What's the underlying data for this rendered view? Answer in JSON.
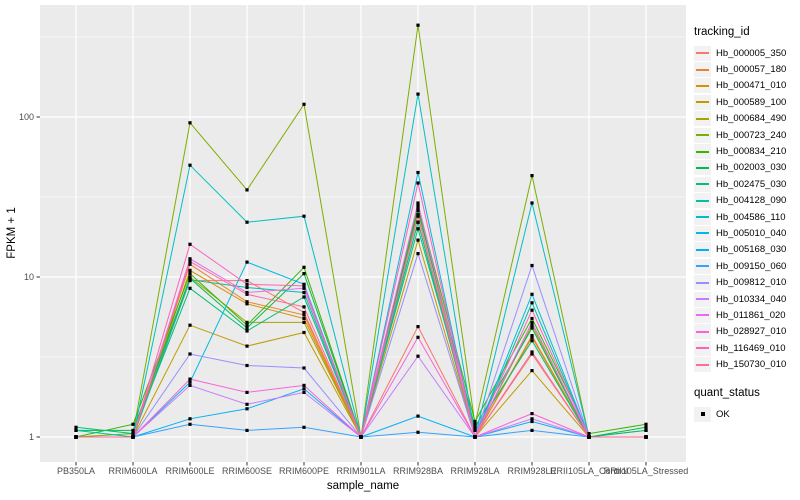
{
  "chart_data": {
    "type": "line",
    "title": "",
    "xlabel": "sample_name",
    "ylabel": "FPKM + 1",
    "y_scale": "log10",
    "y_ticks": [
      "1",
      "10",
      "100"
    ],
    "y_tick_values": [
      1,
      10,
      100
    ],
    "y_minor_values": [
      3.162,
      31.62,
      316.2
    ],
    "ylim_log": [
      -0.15,
      2.7
    ],
    "grid": "on",
    "legend_position": "right",
    "panel_background": "#ebebeb",
    "gridline_color": "#ffffff",
    "axis_text_color": "#4d4d4d",
    "tick_color": "#333333",
    "point_marker": {
      "shape": "square",
      "color": "#000000",
      "size": 3.2
    },
    "categories": [
      "PB350LA",
      "RRIM600LA",
      "RRIM600LE",
      "RRIM600SE",
      "RRIM600PE",
      "RRIM901LA",
      "RRIM928BA",
      "RRIM928LA",
      "RRIM928LE",
      "RRII105LA_Control",
      "RRII105LA_Stressed"
    ],
    "series": [
      {
        "name": "Hb_000005_350",
        "color": "#F8766D",
        "values": [
          1,
          1,
          9.5,
          9.5,
          6.0,
          1,
          4.9,
          1,
          3.3,
          1,
          1
        ]
      },
      {
        "name": "Hb_000057_180",
        "color": "#EA8331",
        "values": [
          1,
          1,
          12,
          7.0,
          5.8,
          1,
          24,
          1,
          4.3,
          1,
          1
        ]
      },
      {
        "name": "Hb_000471_010",
        "color": "#D89000",
        "values": [
          1,
          1,
          11,
          6.8,
          5.5,
          1,
          22,
          1,
          4.2,
          1,
          1
        ]
      },
      {
        "name": "Hb_000589_100",
        "color": "#C09B00",
        "values": [
          1,
          1,
          5.0,
          3.7,
          4.5,
          1,
          17,
          1,
          2.6,
          1,
          1
        ]
      },
      {
        "name": "Hb_000684_490",
        "color": "#A3A500",
        "values": [
          1,
          1,
          10,
          5.2,
          5.2,
          1,
          27,
          1,
          5.0,
          1,
          1
        ]
      },
      {
        "name": "Hb_000723_240",
        "color": "#7CAE00",
        "values": [
          1,
          1.05,
          92,
          35,
          120,
          1,
          375,
          1.2,
          43,
          1,
          1.1
        ]
      },
      {
        "name": "Hb_000834_210",
        "color": "#39B600",
        "values": [
          1,
          1.2,
          10.5,
          5.0,
          11.5,
          1,
          28,
          1.25,
          5.5,
          1.05,
          1.2
        ]
      },
      {
        "name": "Hb_002003_030",
        "color": "#00BB4E",
        "values": [
          1.1,
          1.1,
          9.8,
          4.8,
          10.5,
          1,
          26,
          1.15,
          4.8,
          1,
          1.15
        ]
      },
      {
        "name": "Hb_002475_030",
        "color": "#00BF7D",
        "values": [
          1.15,
          1.05,
          8.5,
          4.6,
          7.5,
          1,
          20,
          1.1,
          4.0,
          1,
          1.1
        ]
      },
      {
        "name": "Hb_004128_090",
        "color": "#00C1A3",
        "values": [
          1.1,
          1,
          9.6,
          8.6,
          8.0,
          1,
          22,
          1,
          6.9,
          1,
          1
        ]
      },
      {
        "name": "Hb_004586_110",
        "color": "#00BFC4",
        "values": [
          1,
          1,
          50,
          22,
          24,
          1,
          139,
          1,
          29,
          1,
          1
        ]
      },
      {
        "name": "Hb_005010_040",
        "color": "#00BAE0",
        "values": [
          1,
          1,
          2.2,
          12.4,
          9.0,
          1,
          45,
          1,
          7.8,
          1,
          1
        ]
      },
      {
        "name": "Hb_005168_030",
        "color": "#00B0F6",
        "values": [
          1,
          1,
          1.3,
          1.5,
          2.0,
          1,
          1.35,
          1,
          1.25,
          1,
          1
        ]
      },
      {
        "name": "Hb_009150_060",
        "color": "#35A2FF",
        "values": [
          1,
          1,
          1.2,
          1.1,
          1.15,
          1,
          1.07,
          1,
          1.1,
          1,
          1
        ]
      },
      {
        "name": "Hb_009812_010",
        "color": "#9590FF",
        "values": [
          1,
          1,
          3.3,
          2.8,
          2.7,
          1,
          14,
          1,
          11.8,
          1,
          1
        ]
      },
      {
        "name": "Hb_010334_040",
        "color": "#C77CFF",
        "values": [
          1,
          1,
          2.1,
          1.6,
          1.9,
          1,
          3.2,
          1,
          1.3,
          1,
          1
        ]
      },
      {
        "name": "Hb_011861_020",
        "color": "#E76BF3",
        "values": [
          1,
          1,
          13,
          8.0,
          8.5,
          1,
          29,
          1,
          5.2,
          1,
          1
        ]
      },
      {
        "name": "Hb_028927_010",
        "color": "#FA62DB",
        "values": [
          1,
          1,
          2.3,
          1.9,
          2.1,
          1,
          4.2,
          1,
          1.4,
          1,
          1
        ]
      },
      {
        "name": "Hb_116469_010",
        "color": "#FF62BC",
        "values": [
          1,
          1,
          16,
          9.0,
          8.8,
          1,
          38.7,
          1,
          6.2,
          1,
          1
        ]
      },
      {
        "name": "Hb_150730_010",
        "color": "#FF6A98",
        "values": [
          1,
          1,
          12.5,
          7.8,
          6.5,
          1,
          24.5,
          1,
          3.4,
          1,
          1
        ]
      }
    ],
    "legend": {
      "tracking_title": "tracking_id",
      "quant_title": "quant_status",
      "quant_items": [
        {
          "label": "OK",
          "marker": "black-square"
        }
      ]
    }
  }
}
